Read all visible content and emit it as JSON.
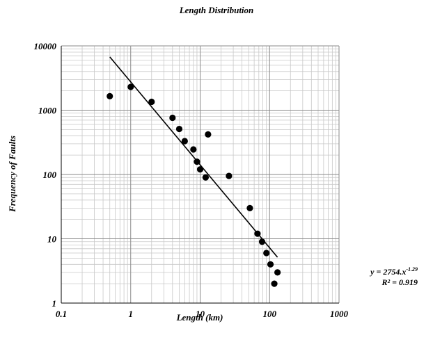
{
  "chart_data": {
    "type": "scatter",
    "title": "Length Distribution",
    "xlabel": "Length (km)",
    "ylabel": "Frequency of Faults",
    "x_scale": "log",
    "y_scale": "log",
    "xlim": [
      0.1,
      1000
    ],
    "ylim": [
      1,
      10000
    ],
    "grid": true,
    "x_tick_labels": [
      "0.1",
      "1",
      "10",
      "100",
      "1000"
    ],
    "y_tick_labels": [
      "1",
      "10",
      "100",
      "1000",
      "10000"
    ],
    "points": [
      {
        "x": 0.5,
        "y": 1650
      },
      {
        "x": 1.0,
        "y": 2300
      },
      {
        "x": 2.0,
        "y": 1350
      },
      {
        "x": 4.0,
        "y": 760
      },
      {
        "x": 5.0,
        "y": 510
      },
      {
        "x": 6.0,
        "y": 330
      },
      {
        "x": 8.0,
        "y": 245
      },
      {
        "x": 9.0,
        "y": 158
      },
      {
        "x": 10.0,
        "y": 120
      },
      {
        "x": 12.0,
        "y": 90
      },
      {
        "x": 13.0,
        "y": 420
      },
      {
        "x": 26.0,
        "y": 95
      },
      {
        "x": 52.0,
        "y": 30
      },
      {
        "x": 67.0,
        "y": 12
      },
      {
        "x": 78.0,
        "y": 9
      },
      {
        "x": 90.0,
        "y": 6
      },
      {
        "x": 103.0,
        "y": 4
      },
      {
        "x": 117.0,
        "y": 2
      },
      {
        "x": 130.0,
        "y": 3
      }
    ],
    "trendline": {
      "type": "power",
      "a": 2754,
      "b": -1.29,
      "x_range": [
        0.5,
        130
      ],
      "equation_base": "y = 2754.x",
      "equation_exponent": "-1.29",
      "r_squared": "R² = 0.919"
    },
    "marker_color": "#000000",
    "line_color": "#000000"
  }
}
